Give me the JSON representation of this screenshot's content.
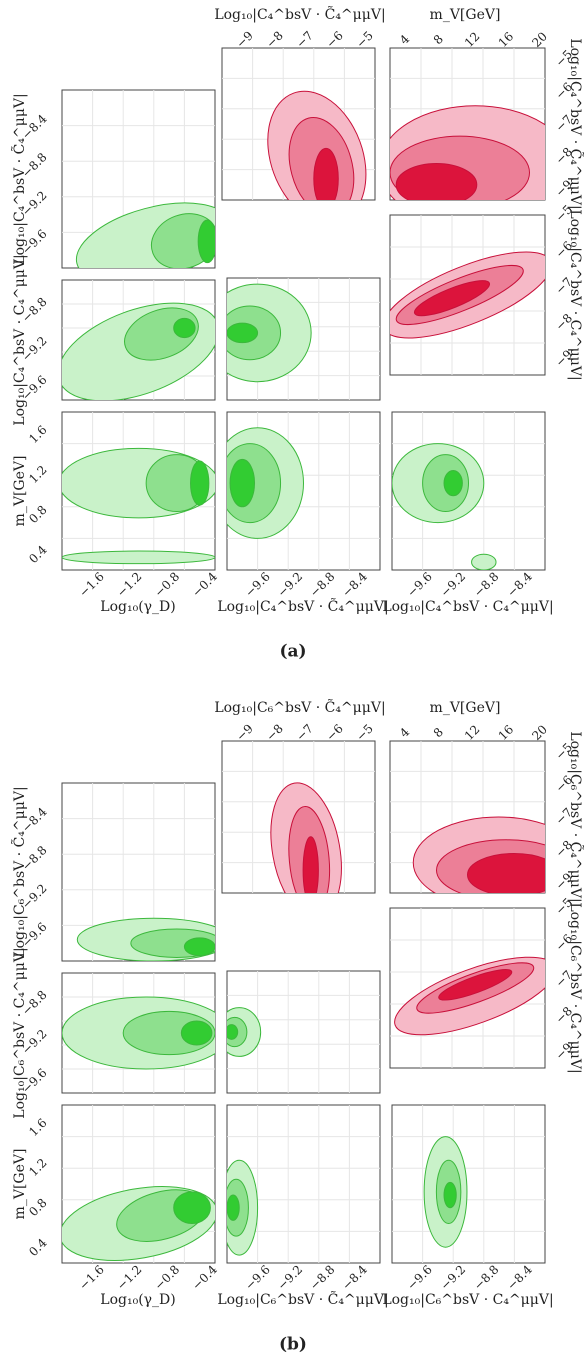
{
  "figures": [
    {
      "caption": "(a)",
      "axes": {
        "top1": {
          "label": "Log₁₀|C₄^bsV · C̃₄^μμV|",
          "ticks": [
            "−9",
            "−8",
            "−7",
            "−6",
            "−5"
          ]
        },
        "top2": {
          "label": "m_V[GeV]",
          "ticks": [
            "4",
            "8",
            "12",
            "16",
            "20"
          ]
        },
        "right1": {
          "label": "Log₁₀|C₄^bsV · C̃₄^μμV|",
          "ticks": [
            "−5",
            "−6",
            "−7",
            "−8",
            "−9"
          ]
        },
        "right2": {
          "label": "Log₁₀|C₄^bsV · C₄^μμV|",
          "ticks": [
            "−5",
            "−6",
            "−7",
            "−8",
            "−9"
          ]
        },
        "left1": {
          "label": "Log₁₀|C₄^bsV · C̃₄^μμV|",
          "ticks": [
            "−8.4",
            "−8.8",
            "−9.2",
            "−9.6"
          ]
        },
        "left2": {
          "label": "Log₁₀|C₄^bsV · C₄^μμV|",
          "ticks": [
            "−8.8",
            "−9.2",
            "−9.6"
          ]
        },
        "left3": {
          "label": "m_V[GeV]",
          "ticks": [
            "1.6",
            "1.2",
            "0.8",
            "0.4"
          ]
        },
        "bottom1": {
          "label": "Log₁₀(γ_D)",
          "ticks": [
            "−1.6",
            "−1.2",
            "−0.8",
            "−0.4"
          ]
        },
        "bottom2": {
          "label": "Log₁₀|C₄^bsV · C̃₄^μμV|",
          "ticks": [
            "−9.6",
            "−9.2",
            "−8.8",
            "−8.4"
          ]
        },
        "bottom3": {
          "label": "Log₁₀|C₄^bsV · C₄^μμV|",
          "ticks": [
            "−9.6",
            "−9.2",
            "−8.8",
            "−8.4"
          ]
        }
      }
    },
    {
      "caption": "(b)",
      "axes": {
        "top1": {
          "label": "Log₁₀|C₆^bsV · C̃₄^μμV|",
          "ticks": [
            "−9",
            "−8",
            "−7",
            "−6",
            "−5"
          ]
        },
        "top2": {
          "label": "m_V[GeV]",
          "ticks": [
            "4",
            "8",
            "12",
            "16",
            "20"
          ]
        },
        "right1": {
          "label": "Log₁₀|C₆^bsV · C̃₄^μμV|",
          "ticks": [
            "−5",
            "−6",
            "−7",
            "−8",
            "−9"
          ]
        },
        "right2": {
          "label": "Log₁₀|C₆^bsV · C₄^μμV|",
          "ticks": [
            "−5",
            "−6",
            "−7",
            "−8",
            "−9"
          ]
        },
        "left1": {
          "label": "Log₁₀|C₆^bsV · C̃₄^μμV|",
          "ticks": [
            "−8.4",
            "−8.8",
            "−9.2",
            "−9.6"
          ]
        },
        "left2": {
          "label": "Log₁₀|C₆^bsV · C₄^μμV|",
          "ticks": [
            "−8.8",
            "−9.2",
            "−9.6"
          ]
        },
        "left3": {
          "label": "m_V[GeV]",
          "ticks": [
            "1.6",
            "1.2",
            "0.8",
            "0.4"
          ]
        },
        "bottom1": {
          "label": "Log₁₀(γ_D)",
          "ticks": [
            "−1.6",
            "−1.2",
            "−0.8",
            "−0.4"
          ]
        },
        "bottom2": {
          "label": "Log₁₀|C₆^bsV · C̃₄^μμV|",
          "ticks": [
            "−9.6",
            "−9.2",
            "−8.8",
            "−8.4"
          ]
        },
        "bottom3": {
          "label": "Log₁₀|C₆^bsV · C₄^μμV|",
          "ticks": [
            "−9.6",
            "−9.2",
            "−8.8",
            "−8.4"
          ]
        }
      }
    }
  ]
}
